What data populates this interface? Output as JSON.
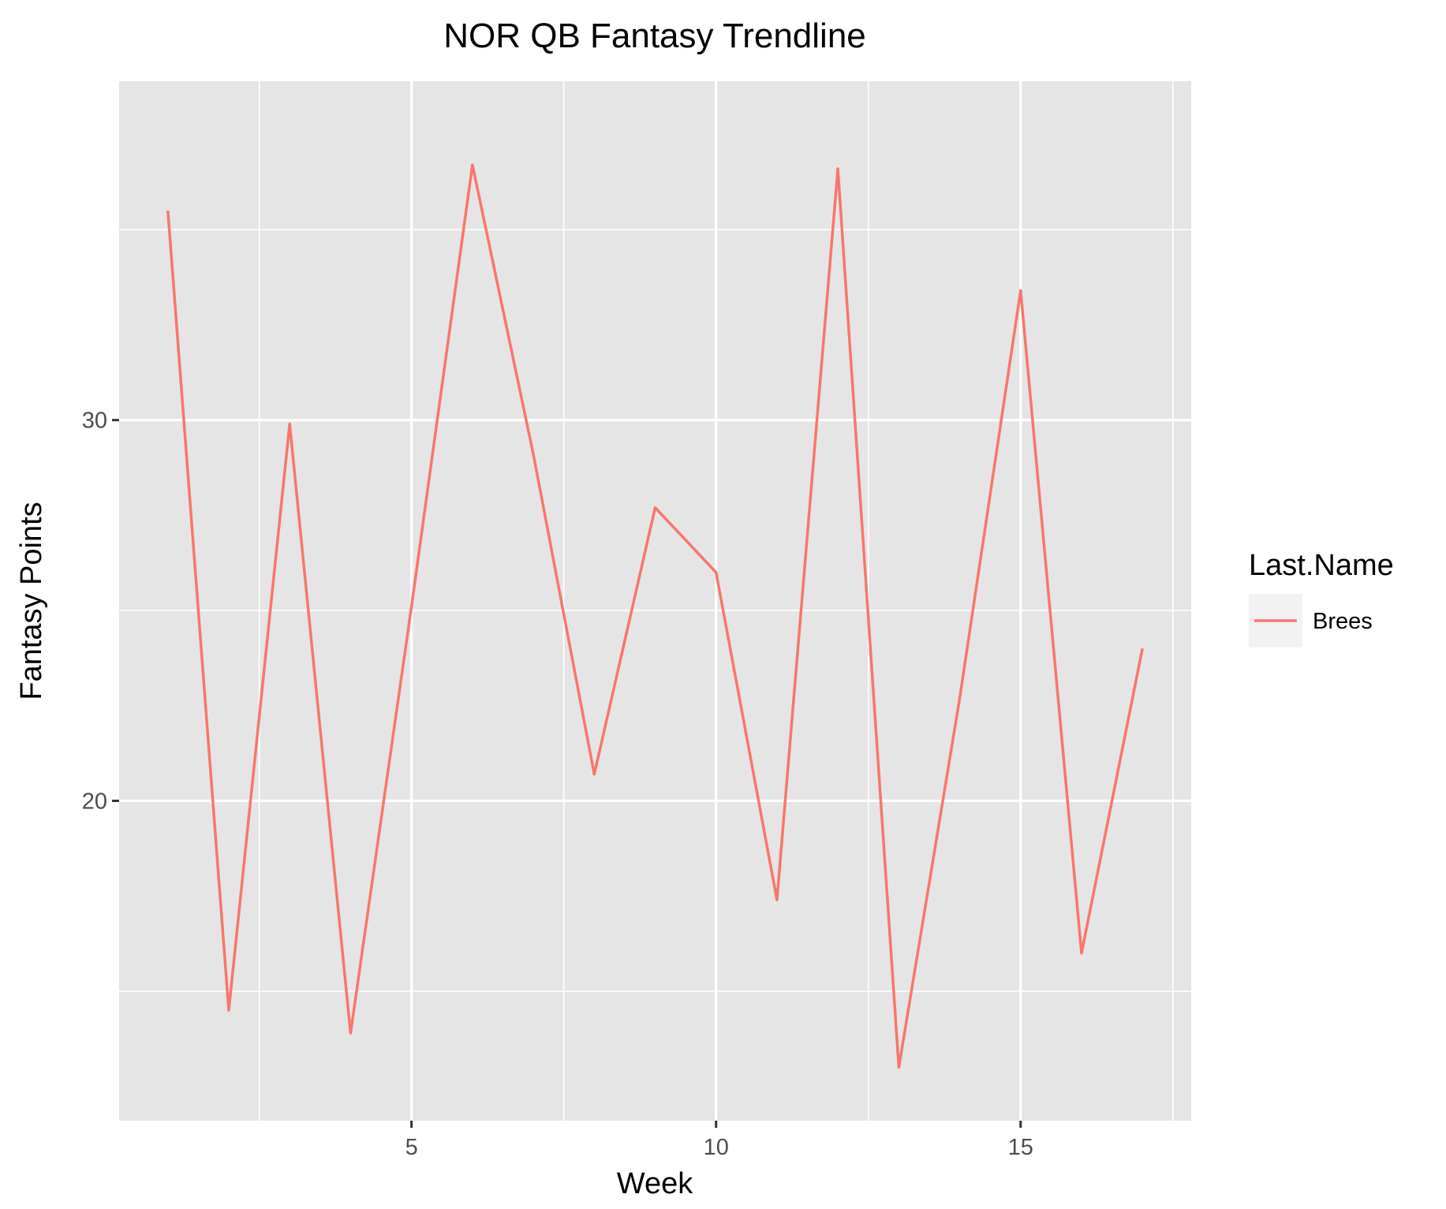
{
  "chart_data": {
    "type": "line",
    "title": "NOR QB Fantasy Trendline",
    "xlabel": "Week",
    "ylabel": "Fantasy Points",
    "xlim": [
      0.2,
      17.8
    ],
    "ylim": [
      11.6,
      38.9
    ],
    "x_ticks": [
      5,
      10,
      15
    ],
    "x_tick_labels": [
      "5",
      "10",
      "15"
    ],
    "y_ticks": [
      20,
      30
    ],
    "y_tick_labels": [
      "20",
      "30"
    ],
    "grid": true,
    "legend": {
      "title": "Last.Name",
      "position": "right"
    },
    "series": [
      {
        "name": "Brees",
        "color": "#F8766D",
        "x": [
          1,
          2,
          3,
          4,
          5,
          6,
          7,
          8,
          9,
          10,
          11,
          12,
          13,
          14,
          15,
          16,
          17
        ],
        "y": [
          35.5,
          14.5,
          29.9,
          13.9,
          25.1,
          36.7,
          29.1,
          20.7,
          27.7,
          26.0,
          17.4,
          36.6,
          13.0,
          22.7,
          33.4,
          16.0,
          24.0
        ]
      }
    ]
  }
}
